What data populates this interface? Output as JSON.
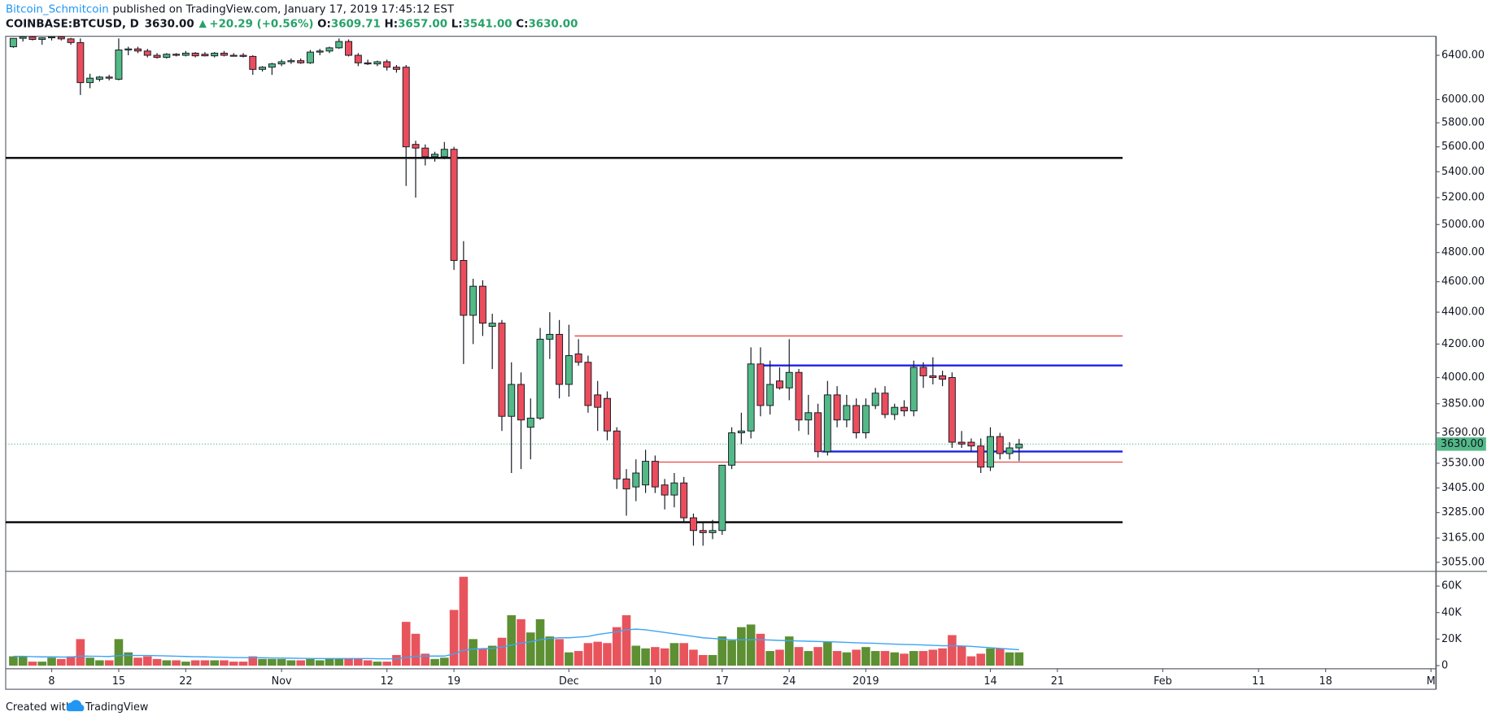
{
  "header": {
    "author": "Bitcoin_Schmitcoin",
    "published": "published on TradingView.com, January 17, 2019 17:45:12 EST",
    "symbol": "COINBASE:BTCUSD, D",
    "price": "3630.00",
    "change": "+20.29 (+0.56%)",
    "o_label": "O:",
    "o": "3609.71",
    "h_label": "H:",
    "h": "3657.00",
    "l_label": "L:",
    "l": "3541.00",
    "c_label": "C:",
    "c": "3630.00"
  },
  "footer": {
    "created": "Created with",
    "brand": "TradingView"
  },
  "chart_data": {
    "type": "candlestick",
    "log_scale": true,
    "xlim": [
      -0.8,
      148.5
    ],
    "xticks": [
      {
        "value": 4,
        "label": "8"
      },
      {
        "value": 11,
        "label": "15"
      },
      {
        "value": 18,
        "label": "22"
      },
      {
        "value": 28,
        "label": "Nov"
      },
      {
        "value": 39,
        "label": "12"
      },
      {
        "value": 46,
        "label": "19"
      },
      {
        "value": 58,
        "label": "Dec"
      },
      {
        "value": 67,
        "label": "10"
      },
      {
        "value": 74,
        "label": "17"
      },
      {
        "value": 81,
        "label": "24"
      },
      {
        "value": 89,
        "label": "2019"
      },
      {
        "value": 102,
        "label": "14"
      },
      {
        "value": 109,
        "label": "21"
      },
      {
        "value": 120,
        "label": "Feb"
      },
      {
        "value": 130,
        "label": "11"
      },
      {
        "value": 137,
        "label": "18"
      },
      {
        "value": 148,
        "label": "M"
      }
    ],
    "ylim": [
      3017,
      6580
    ],
    "yticks": [
      {
        "value": 6400,
        "label": "6400.00"
      },
      {
        "value": 6000,
        "label": "6000.00"
      },
      {
        "value": 5800,
        "label": "5800.00"
      },
      {
        "value": 5600,
        "label": "5600.00"
      },
      {
        "value": 5400,
        "label": "5400.00"
      },
      {
        "value": 5200,
        "label": "5200.00"
      },
      {
        "value": 5000,
        "label": "5000.00"
      },
      {
        "value": 4800,
        "label": "4800.00"
      },
      {
        "value": 4600,
        "label": "4600.00"
      },
      {
        "value": 4400,
        "label": "4400.00"
      },
      {
        "value": 4200,
        "label": "4200.00"
      },
      {
        "value": 4000,
        "label": "4000.00"
      },
      {
        "value": 3850,
        "label": "3850.00"
      },
      {
        "value": 3690,
        "label": "3690.00"
      },
      {
        "value": 3530,
        "label": "3530.00"
      },
      {
        "value": 3405,
        "label": "3405.00"
      },
      {
        "value": 3285,
        "label": "3285.00"
      },
      {
        "value": 3165,
        "label": "3165.00"
      },
      {
        "value": 3055,
        "label": "3055.00"
      }
    ],
    "up_color": "#53b987",
    "down_color": "#eb4d5c",
    "open": [
      6480,
      6560,
      6575,
      6550,
      6565,
      6575,
      6555,
      6520,
      6150,
      6180,
      6200,
      6180,
      6450,
      6460,
      6440,
      6400,
      6380,
      6410,
      6400,
      6420,
      6410,
      6395,
      6420,
      6400,
      6400,
      6390,
      6270,
      6290,
      6320,
      6340,
      6350,
      6330,
      6430,
      6440,
      6470,
      6530,
      6400,
      6330,
      6320,
      6340,
      6290,
      6290,
      5620,
      5590,
      5520,
      5520,
      5580,
      4745,
      4380,
      4570,
      4310,
      4330,
      3780,
      3960,
      3720,
      3770,
      4230,
      4260,
      3960,
      4140,
      4090,
      3900,
      3880,
      3700,
      3450,
      3410,
      3420,
      3540,
      3420,
      3370,
      3430,
      3260,
      3200,
      3190,
      3200,
      3520,
      3690,
      3700,
      4080,
      3840,
      3980,
      3940,
      4030,
      3760,
      3800,
      3590,
      3900,
      3760,
      3840,
      3690,
      3840,
      3910,
      3790,
      3830,
      3810,
      4060,
      4010,
      4010,
      4000,
      3640,
      3640,
      3620,
      3510,
      3670,
      3580,
      3610
    ],
    "high": [
      6560,
      6580,
      6590,
      6570,
      6600,
      6580,
      6565,
      6560,
      6230,
      6210,
      6220,
      6560,
      6480,
      6480,
      6460,
      6420,
      6420,
      6420,
      6440,
      6430,
      6430,
      6430,
      6440,
      6420,
      6420,
      6400,
      6300,
      6330,
      6360,
      6370,
      6370,
      6450,
      6460,
      6480,
      6560,
      6550,
      6420,
      6360,
      6350,
      6360,
      6310,
      6310,
      5650,
      5620,
      5560,
      5640,
      5600,
      4880,
      4620,
      4610,
      4390,
      4350,
      4090,
      4030,
      3880,
      4300,
      4400,
      4350,
      4320,
      4230,
      4130,
      3980,
      3920,
      3720,
      3500,
      3550,
      3600,
      3570,
      3450,
      3480,
      3460,
      3280,
      3240,
      3250,
      3520,
      3720,
      3800,
      4180,
      4180,
      4100,
      4060,
      4230,
      4050,
      3900,
      3850,
      3980,
      3950,
      3900,
      3880,
      3880,
      3940,
      3950,
      3850,
      3870,
      4100,
      4090,
      4120,
      4040,
      4030,
      3700,
      3660,
      3660,
      3720,
      3690,
      3640,
      3657
    ],
    "low": [
      6470,
      6530,
      6540,
      6500,
      6540,
      6540,
      6500,
      6040,
      6100,
      6160,
      6170,
      6170,
      6400,
      6420,
      6380,
      6370,
      6370,
      6390,
      6390,
      6380,
      6390,
      6380,
      6390,
      6390,
      6380,
      6220,
      6250,
      6220,
      6300,
      6320,
      6320,
      6320,
      6400,
      6420,
      6460,
      6390,
      6300,
      6310,
      6300,
      6260,
      6240,
      5290,
      5200,
      5450,
      5480,
      5500,
      4680,
      4080,
      4200,
      4250,
      4050,
      3700,
      3480,
      3500,
      3550,
      3760,
      4110,
      3880,
      3890,
      4070,
      3800,
      3700,
      3650,
      3400,
      3270,
      3340,
      3380,
      3380,
      3300,
      3310,
      3240,
      3130,
      3130,
      3160,
      3180,
      3500,
      3630,
      3660,
      3780,
      3790,
      3930,
      3870,
      3700,
      3680,
      3560,
      3570,
      3720,
      3720,
      3660,
      3660,
      3820,
      3770,
      3760,
      3780,
      3780,
      3940,
      3960,
      3950,
      3610,
      3610,
      3590,
      3480,
      3490,
      3550,
      3550,
      3541
    ],
    "close": [
      6560,
      6575,
      6550,
      6565,
      6575,
      6555,
      6520,
      6150,
      6190,
      6200,
      6190,
      6450,
      6460,
      6440,
      6400,
      6380,
      6410,
      6400,
      6420,
      6395,
      6395,
      6420,
      6400,
      6395,
      6390,
      6270,
      6290,
      6320,
      6340,
      6350,
      6330,
      6430,
      6440,
      6470,
      6530,
      6400,
      6330,
      6320,
      6340,
      6290,
      6270,
      5600,
      5590,
      5520,
      5540,
      5580,
      4745,
      4380,
      4570,
      4330,
      4330,
      3780,
      3960,
      3760,
      3770,
      4230,
      4260,
      3960,
      4130,
      4090,
      3840,
      3830,
      3700,
      3450,
      3400,
      3480,
      3540,
      3410,
      3370,
      3430,
      3260,
      3200,
      3190,
      3200,
      3520,
      3690,
      3700,
      4080,
      3840,
      3960,
      3940,
      4030,
      3760,
      3800,
      3590,
      3900,
      3760,
      3840,
      3690,
      3840,
      3910,
      3790,
      3830,
      3810,
      4060,
      4010,
      4000,
      3990,
      3640,
      3630,
      3620,
      3510,
      3670,
      3580,
      3610,
      3630
    ],
    "last_price": {
      "value": 3630,
      "label": "3630.00"
    },
    "levels": [
      {
        "value": 5510,
        "color": "#000000",
        "start": -0.8,
        "end": 115.8
      },
      {
        "value": 3239,
        "color": "#000000",
        "start": -0.8,
        "end": 115.8
      },
      {
        "value": 4250,
        "color": "#e53935",
        "start": 58.6,
        "end": 115.8
      },
      {
        "value": 4071,
        "color": "#1e22e0",
        "start": 78.3,
        "end": 115.8
      },
      {
        "value": 3591,
        "color": "#1e22e0",
        "start": 84.4,
        "end": 115.8
      },
      {
        "value": 3536,
        "color": "#e53935",
        "start": 66.9,
        "end": 115.8
      }
    ],
    "volume": {
      "up_color": "#5d8f33",
      "down_color": "#e8545c",
      "ma_color": "#3da5f4",
      "ylim": [
        -2000,
        70000
      ],
      "yticks": [
        0,
        {
          "value": 20000,
          "label": "20K"
        },
        {
          "value": 40000,
          "label": "40K"
        },
        {
          "value": 60000,
          "label": "60K"
        }
      ],
      "values": [
        7000,
        7000,
        3000,
        3000,
        6000,
        5000,
        7000,
        20000,
        6000,
        4000,
        4000,
        20000,
        10000,
        6000,
        7000,
        5000,
        4000,
        4000,
        3000,
        4000,
        4000,
        4000,
        4000,
        3000,
        3000,
        7000,
        5000,
        5000,
        5000,
        4000,
        4000,
        5000,
        4000,
        5000,
        5000,
        5000,
        5000,
        4000,
        3000,
        3000,
        8000,
        33000,
        24000,
        9000,
        5000,
        6000,
        42000,
        67000,
        20000,
        13000,
        15000,
        21000,
        38000,
        35000,
        25000,
        35000,
        22000,
        20000,
        10000,
        11000,
        17000,
        18000,
        17000,
        29000,
        38000,
        15000,
        13000,
        14000,
        13000,
        17000,
        17000,
        12000,
        8000,
        8000,
        22000,
        19000,
        29000,
        31000,
        24000,
        11000,
        12000,
        22000,
        14000,
        11000,
        14000,
        18000,
        11000,
        10000,
        12000,
        14000,
        11000,
        11000,
        10000,
        9000,
        11000,
        11000,
        12000,
        13000,
        23000,
        15000,
        7000,
        9000,
        13000,
        13000,
        10000,
        10000
      ],
      "ma": [
        7000,
        7000,
        6800,
        6600,
        6600,
        6500,
        6500,
        7200,
        7100,
        7000,
        6900,
        7500,
        7700,
        7600,
        7600,
        7500,
        7300,
        7100,
        6900,
        6700,
        6600,
        6400,
        6300,
        6100,
        6000,
        6000,
        5900,
        5800,
        5700,
        5600,
        5500,
        5400,
        5300,
        5300,
        5300,
        5300,
        5300,
        5300,
        5200,
        5100,
        5200,
        6200,
        7000,
        7200,
        7200,
        7200,
        8800,
        11500,
        12500,
        12800,
        13000,
        14000,
        15500,
        17000,
        18000,
        19500,
        20500,
        21000,
        21000,
        21500,
        22000,
        23500,
        24500,
        25500,
        27000,
        27500,
        27000,
        26000,
        25000,
        24000,
        23000,
        22000,
        21000,
        20500,
        20000,
        19500,
        19500,
        19500,
        19500,
        19300,
        19000,
        18800,
        18600,
        18400,
        18200,
        18000,
        17800,
        17500,
        17200,
        17000,
        16800,
        16500,
        16200,
        16000,
        15800,
        15600,
        15300,
        15000,
        15000,
        14800,
        14500,
        14000,
        13500,
        13000,
        12500,
        12000
      ]
    }
  }
}
